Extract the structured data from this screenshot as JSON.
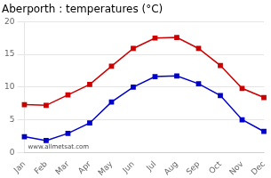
{
  "chart_data": {
    "type": "line",
    "title": "Aberporth : temperatures (°C)",
    "categories": [
      "Jan",
      "Feb",
      "Mar",
      "Apr",
      "May",
      "Jun",
      "Jul",
      "Aug",
      "Sep",
      "Oct",
      "Nov",
      "Dec"
    ],
    "series": [
      {
        "color": "#cc0000",
        "values": [
          7.3,
          7.2,
          8.8,
          10.4,
          13.2,
          15.9,
          17.5,
          17.6,
          15.9,
          13.3,
          9.8,
          8.4
        ]
      },
      {
        "color": "#0000cc",
        "values": [
          2.4,
          1.8,
          2.9,
          4.5,
          7.7,
          10.0,
          11.6,
          11.7,
          10.5,
          8.7,
          5.0,
          3.2
        ]
      }
    ],
    "ylim": [
      0,
      20
    ],
    "yticks": [
      0,
      5,
      10,
      15,
      20
    ],
    "grid": "y",
    "marker": "square",
    "annotation": "www.allmetsat.com"
  }
}
